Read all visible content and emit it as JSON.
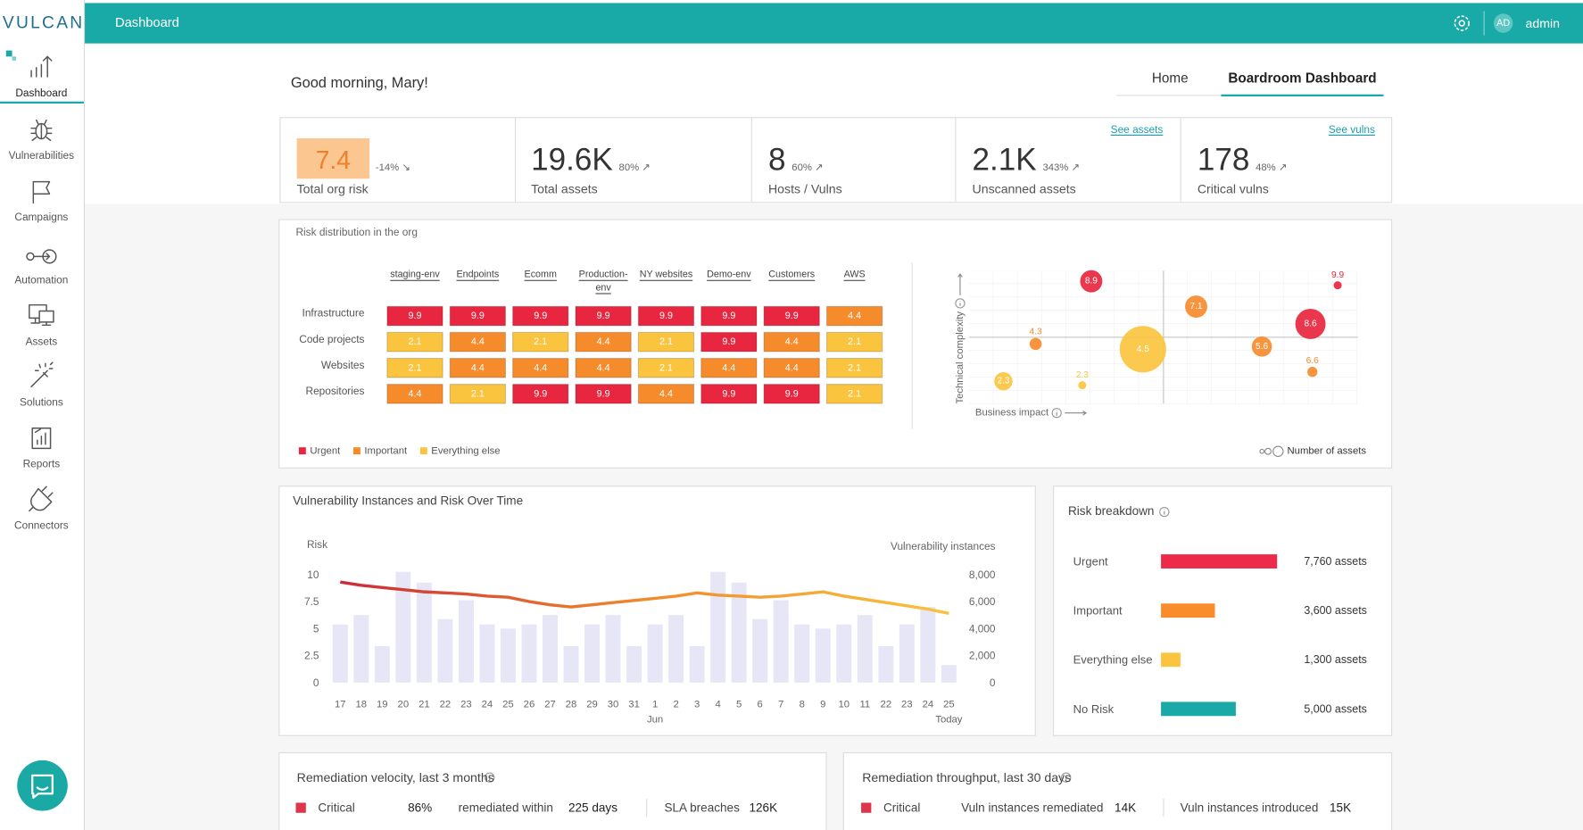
{
  "brand": "VULCAN",
  "topbar": {
    "title": "Dashboard",
    "avatar": "AD",
    "user": "admin"
  },
  "sidebar": [
    {
      "label": "Dashboard",
      "active": true
    },
    {
      "label": "Vulnerabilities"
    },
    {
      "label": "Campaigns"
    },
    {
      "label": "Automation"
    },
    {
      "label": "Assets"
    },
    {
      "label": "Solutions"
    },
    {
      "label": "Reports"
    },
    {
      "label": "Connectors"
    }
  ],
  "greeting": "Good morning, Mary!",
  "tabs": [
    {
      "label": "Home"
    },
    {
      "label": "Boardroom Dashboard",
      "active": true
    }
  ],
  "kpis": [
    {
      "value": 7.4,
      "change": "-14% ↘",
      "label": "Total org risk",
      "badge_color": "#fbc690",
      "value_color": "#f07f2a"
    },
    {
      "value": "19.6K",
      "change": "80% ↗",
      "label": "Total assets"
    },
    {
      "value": 8,
      "change": "60% ↗",
      "label": "Hosts / Vulns"
    },
    {
      "value": "2.1K",
      "change": "343% ↗",
      "label": "Unscanned assets",
      "link": "See assets"
    },
    {
      "value": 178,
      "change": "48% ↗",
      "label": "Critical vulns",
      "link": "See vulns"
    }
  ],
  "chart_data": [
    {
      "type": "heatmap",
      "title": "Risk distribution in the org",
      "columns": [
        "staging-env",
        "Endpoints",
        "Ecomm",
        "Production-env",
        "NY websites",
        "Demo-env",
        "Customers",
        "AWS"
      ],
      "rows": [
        "Infrastructure",
        "Code projects",
        "Websites",
        "Repositories"
      ],
      "values": [
        [
          9.9,
          9.9,
          9.9,
          9.9,
          9.9,
          9.9,
          9.9,
          4.4
        ],
        [
          2.1,
          4.4,
          2.1,
          4.4,
          2.1,
          9.9,
          4.4,
          2.1
        ],
        [
          2.1,
          4.4,
          4.4,
          4.4,
          2.1,
          4.4,
          4.4,
          2.1
        ],
        [
          4.4,
          2.1,
          9.9,
          9.9,
          4.4,
          9.9,
          9.9,
          2.1
        ]
      ],
      "legend": [
        {
          "name": "Urgent",
          "color": "#e8263f"
        },
        {
          "name": "Important",
          "color": "#f68b2c"
        },
        {
          "name": "Everything else",
          "color": "#fac43e"
        }
      ]
    },
    {
      "type": "bubble",
      "xlabel": "Business impact",
      "ylabel": "Technical complexity",
      "size_label": "Number of assets",
      "xlim": [
        0,
        10
      ],
      "ylim": [
        0,
        10
      ],
      "series": [
        {
          "color": "#e8263f",
          "x": [
            3.14,
            9.48,
            8.78
          ],
          "y": [
            9.2,
            8.9,
            6.0
          ],
          "size": [
            121,
            16,
            225
          ],
          "values": [
            8.9,
            9.9,
            8.6
          ]
        },
        {
          "color": "#f68b2c",
          "x": [
            5.84,
            1.71,
            7.53,
            8.83
          ],
          "y": [
            7.3,
            4.5,
            4.3,
            2.4
          ],
          "size": [
            121,
            36,
            100,
            25
          ],
          "values": [
            7.1,
            4.3,
            5.6,
            6.6
          ]
        },
        {
          "color": "#fac43e",
          "x": [
            4.47,
            2.91,
            0.88
          ],
          "y": [
            4.1,
            1.4,
            1.7
          ],
          "size": [
            529,
            16,
            81
          ],
          "values": [
            4.5,
            2.3,
            2.3
          ]
        }
      ]
    },
    {
      "type": "combo",
      "title": "Vulnerability Instances and Risk Over Time",
      "ylabel": "Risk",
      "y2label": "Vulnerability instances",
      "categories": [
        "17",
        "18",
        "19",
        "20",
        "21",
        "22",
        "23",
        "24",
        "25",
        "26",
        "27",
        "28",
        "29",
        "30",
        "31",
        "1",
        "2",
        "3",
        "4",
        "5",
        "6",
        "7",
        "8",
        "9",
        "10",
        "11",
        "22",
        "23",
        "24",
        "25"
      ],
      "annotations": [
        {
          "category": 15,
          "label": "Jun"
        },
        {
          "category": 29,
          "label": "Today"
        }
      ],
      "ylim": [
        0,
        10
      ],
      "yticks": [
        0,
        2.5,
        5,
        7.5,
        10
      ],
      "y2lim": [
        0,
        8000
      ],
      "y2ticks": [
        0,
        {
          "value": 2000,
          "label": "2,000"
        },
        {
          "value": 4000,
          "label": "4,000"
        },
        {
          "value": 6000,
          "label": "6,000"
        },
        {
          "value": 8000,
          "label": "8,000"
        }
      ],
      "series": [
        {
          "type": "bar",
          "axis": "y2",
          "color": "#e7e6f7",
          "values": [
            4300,
            5000,
            2700,
            8200,
            7400,
            4700,
            6100,
            4300,
            4000,
            4300,
            5000,
            2700,
            4300,
            5000,
            2700,
            4300,
            5000,
            2700,
            8200,
            7400,
            4700,
            6100,
            4300,
            4000,
            4300,
            5000,
            2700,
            4300,
            5600,
            1300
          ]
        },
        {
          "type": "line",
          "colors": [
            "#c8283a",
            "#f08a2c",
            "#f7c53f"
          ],
          "values": [
            9.3,
            9.0,
            8.8,
            8.6,
            8.4,
            8.3,
            8.2,
            8.0,
            7.9,
            7.5,
            7.2,
            7.0,
            7.2,
            7.4,
            7.6,
            7.8,
            8.0,
            8.3,
            8.1,
            8.0,
            7.9,
            8.0,
            8.2,
            8.4,
            8.0,
            7.7,
            7.4,
            7.1,
            6.8,
            6.4
          ]
        }
      ]
    },
    {
      "type": "hbar",
      "title": "Risk breakdown",
      "categories": [
        "Urgent",
        "Important",
        "Everything else",
        "No Risk"
      ],
      "values": [
        7760,
        3600,
        1300,
        5000
      ],
      "value_labels": [
        "7,760 assets",
        "3,600 assets",
        "1,300 assets",
        "5,000 assets"
      ],
      "colors": [
        "#ee2a4a",
        "#f98c2b",
        "#fbc43f",
        "#1aa9a6"
      ]
    }
  ],
  "remediation": [
    {
      "title": "Remediation velocity, last 3 months",
      "severity": "Critical",
      "color": "#e0344a",
      "rate": "86%",
      "within_label": "remediated within",
      "within": "225 days",
      "sla_label": "SLA breaches",
      "sla": "126K"
    },
    {
      "title": "Remediation throughput, last 30 days",
      "severity": "Critical",
      "color": "#e0344a",
      "remediated_label": "Vuln instances remediated",
      "remediated": "14K",
      "introduced_label": "Vuln instances introduced",
      "introduced": "15K"
    }
  ]
}
